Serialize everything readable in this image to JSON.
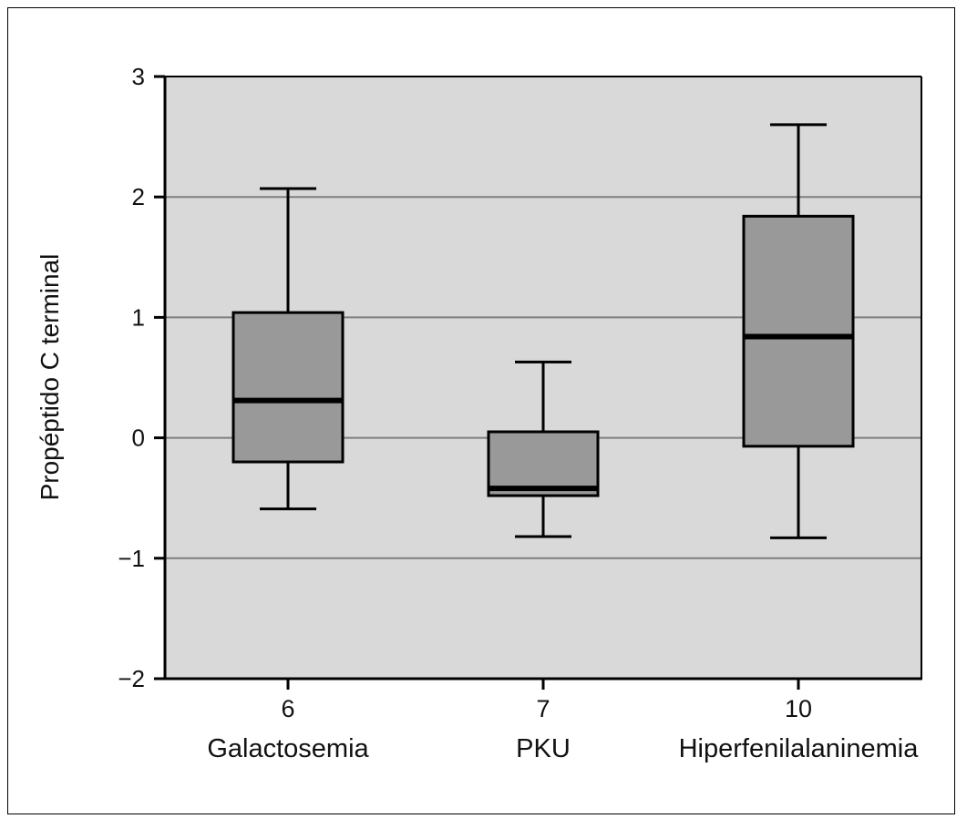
{
  "chart_data": {
    "type": "boxplot",
    "title": "",
    "xlabel": "",
    "ylabel": "Propéptido C terminal",
    "ylim": [
      -2,
      3
    ],
    "yticks": [
      -2,
      -1,
      0,
      1,
      2,
      3
    ],
    "ytick_labels": [
      "−2",
      "−1",
      "0",
      "1",
      "2",
      "3"
    ],
    "grid": true,
    "colors": {
      "plot_bg": "#d9d9d9",
      "box_fill": "#999999",
      "grid": "#7f7f7f",
      "line": "#000000"
    },
    "categories": [
      {
        "count": "6",
        "name": "Galactosemia",
        "whisker_low": -0.59,
        "q1": -0.2,
        "median": 0.31,
        "q3": 1.04,
        "whisker_high": 2.07
      },
      {
        "count": "7",
        "name": "PKU",
        "whisker_low": -0.82,
        "q1": -0.48,
        "median": -0.42,
        "q3": 0.05,
        "whisker_high": 0.63
      },
      {
        "count": "10",
        "name": "Hiperfenilalaninemia",
        "whisker_low": -0.83,
        "q1": -0.07,
        "median": 0.84,
        "q3": 1.84,
        "whisker_high": 2.6
      }
    ]
  }
}
